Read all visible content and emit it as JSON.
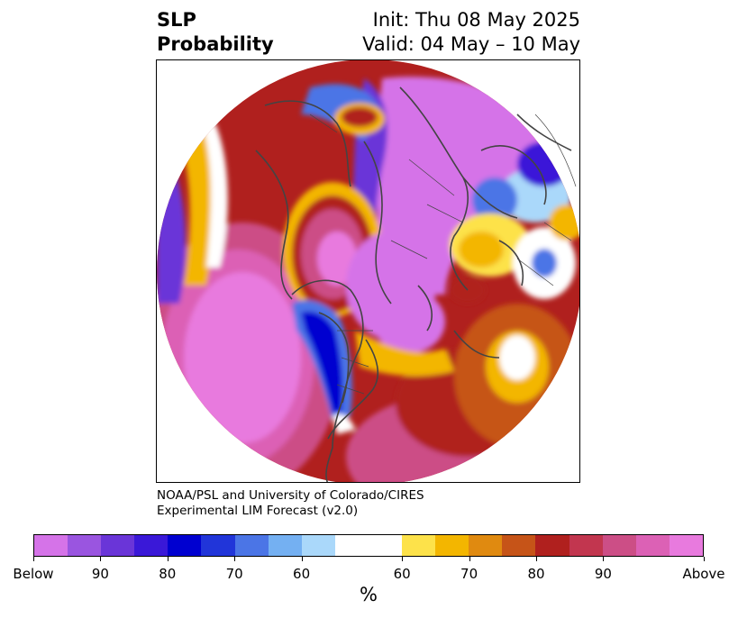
{
  "title": {
    "left_line1": "SLP",
    "left_line2": "Probability",
    "right_line1": "Init: Thu 08 May 2025",
    "right_line2": "Valid: 04 May – 10 May"
  },
  "credit": {
    "line1": "NOAA/PSL and University of Colorado/CIRES",
    "line2": "Experimental LIM Forecast (v2.0)"
  },
  "colorbar": {
    "colors": [
      "#d573e8",
      "#9a55e0",
      "#6a35d8",
      "#3a18d8",
      "#0000d0",
      "#2135d9",
      "#4b75e6",
      "#74b0f2",
      "#aad8fa",
      "#ffffff",
      "#ffffff",
      "#fde24a",
      "#f3b600",
      "#e08a10",
      "#c65418",
      "#b0201e",
      "#c2364f",
      "#cc4e86",
      "#dc61b5",
      "#e87ade"
    ],
    "tick_labels": [
      "Below",
      "90",
      "80",
      "70",
      "60",
      "60",
      "70",
      "80",
      "90",
      "Above"
    ],
    "units": "%"
  },
  "map": {
    "region": "Northern Hemisphere polar stereographic",
    "palette": {
      "above_max": "#e87ade",
      "above_high": "#cc4e86",
      "above_mid": "#b0201e",
      "above_low": "#c65418",
      "above_min": "#f3b600",
      "neutral": "#ffffff",
      "below_min": "#aad8fa",
      "below_low": "#4b75e6",
      "below_mid": "#0000d0",
      "below_high": "#6a35d8",
      "below_max": "#d573e8",
      "coastline": "#444444"
    }
  }
}
